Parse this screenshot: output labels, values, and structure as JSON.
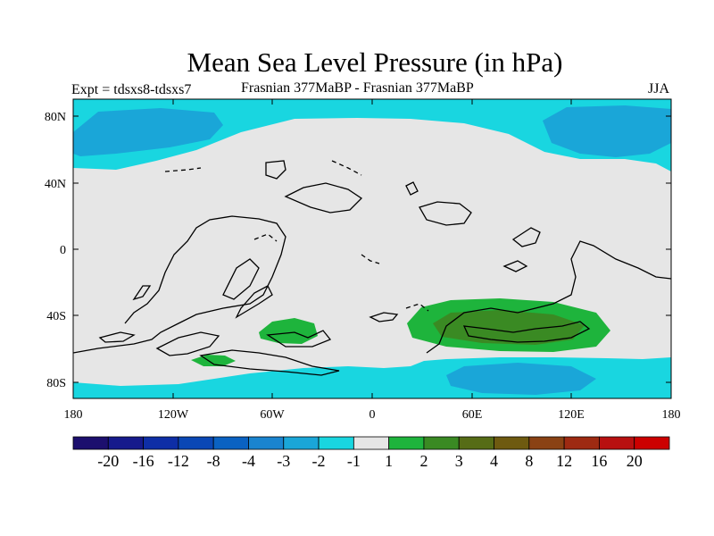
{
  "title": "Mean Sea Level Pressure (in hPa)",
  "left_label": "Expt = tdsxs8-tdsxs7",
  "center_label": "Frasnian 377MaBP - Frasnian 377MaBP",
  "right_label": "JJA",
  "lat_ticks": [
    "80N",
    "40N",
    "0",
    "40S",
    "80S"
  ],
  "lon_ticks": [
    "180",
    "120W",
    "60W",
    "0",
    "60E",
    "120E",
    "180"
  ],
  "colorbar": {
    "colors": [
      "#1c0f6e",
      "#161a8c",
      "#0e2ea6",
      "#0a47b5",
      "#0a62c2",
      "#1a84cf",
      "#1aa6d8",
      "#19d6e0",
      "#e6e6e6",
      "#1eb43c",
      "#3a8a23",
      "#566c16",
      "#6e5a10",
      "#8a4214",
      "#9e2a12",
      "#b81010",
      "#cc0000"
    ],
    "labels": [
      "-20",
      "-16",
      "-12",
      "-8",
      "-4",
      "-3",
      "-2",
      "-1",
      "1",
      "2",
      "3",
      "4",
      "8",
      "12",
      "16",
      "20"
    ]
  }
}
